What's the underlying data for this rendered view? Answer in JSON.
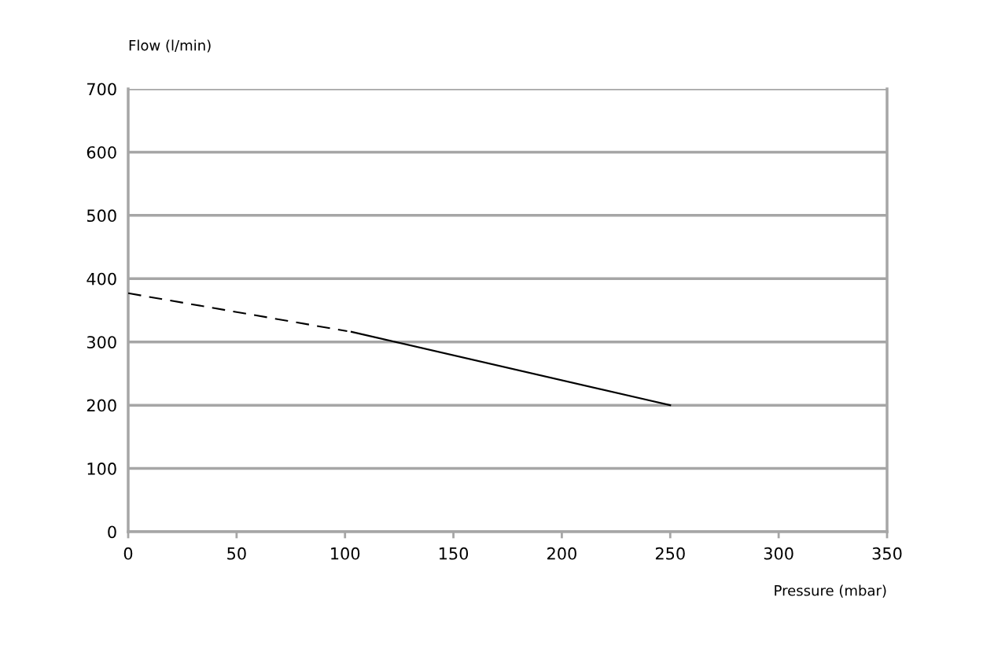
{
  "chart_data": {
    "type": "line",
    "xlabel": "Pressure (mbar)",
    "ylabel": "Flow (l/min)",
    "series": [
      {
        "x": [
          0,
          101
        ],
        "values": [
          377,
          317
        ],
        "color": "#000000",
        "line_style": "dashed"
      },
      {
        "x": [
          103,
          250
        ],
        "values": [
          316,
          200
        ],
        "color": "#000000",
        "line_style": "solid"
      }
    ],
    "xlim": [
      0,
      350
    ],
    "xticks": [
      0,
      50,
      100,
      150,
      200,
      250,
      300,
      350
    ],
    "ylim": [
      0,
      700
    ],
    "yticks": [
      0,
      100,
      200,
      300,
      400,
      500,
      600,
      700
    ],
    "grid": "y",
    "legend": false,
    "marker": "none"
  }
}
